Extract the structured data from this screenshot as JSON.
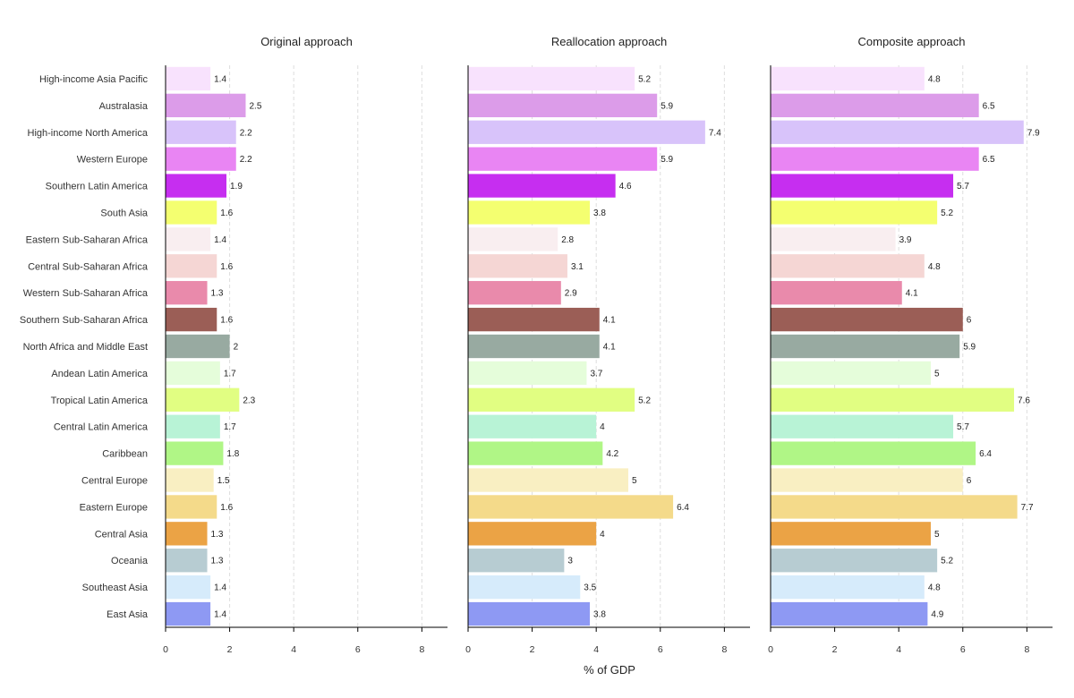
{
  "chart_data": {
    "type": "bar",
    "orientation": "horizontal",
    "xlabel": "% of GDP",
    "xlim": [
      0,
      8.8
    ],
    "xticks": [
      0,
      2,
      4,
      6,
      8
    ],
    "grid": true,
    "categories": [
      "High-income Asia Pacific",
      "Australasia",
      "High-income North America",
      "Western Europe",
      "Southern Latin America",
      "South Asia",
      "Eastern Sub-Saharan Africa",
      "Central Sub-Saharan Africa",
      "Western Sub-Saharan Africa",
      "Southern Sub-Saharan Africa",
      "North Africa and Middle East",
      "Andean Latin America",
      "Tropical Latin America",
      "Central Latin America",
      "Caribbean",
      "Central Europe",
      "Eastern Europe",
      "Central Asia",
      "Oceania",
      "Southeast Asia",
      "East Asia"
    ],
    "colors": [
      "#f8e2fd",
      "#dc9ce9",
      "#d8c3fa",
      "#e985f3",
      "#c62ef0",
      "#f4ff70",
      "#f9eef0",
      "#f5d6d4",
      "#e98aab",
      "#9b5e56",
      "#98aaa1",
      "#e5fdda",
      "#e1fe82",
      "#b8f3d6",
      "#b0f686",
      "#f9efc2",
      "#f4da8a",
      "#eba345",
      "#b7ccd2",
      "#d6ebfb",
      "#8e99f3"
    ],
    "series": [
      {
        "name": "Original approach",
        "values": [
          1.4,
          2.5,
          2.2,
          2.2,
          1.9,
          1.6,
          1.4,
          1.6,
          1.3,
          1.6,
          2,
          1.7,
          2.3,
          1.7,
          1.8,
          1.5,
          1.6,
          1.3,
          1.3,
          1.4,
          1.4
        ]
      },
      {
        "name": "Reallocation approach",
        "values": [
          5.2,
          5.9,
          7.4,
          5.9,
          4.6,
          3.8,
          2.8,
          3.1,
          2.9,
          4.1,
          4.1,
          3.7,
          5.2,
          4,
          4.2,
          5,
          6.4,
          4,
          3,
          3.5,
          3.8
        ]
      },
      {
        "name": "Composite approach",
        "values": [
          4.8,
          6.5,
          7.9,
          6.5,
          5.7,
          5.2,
          3.9,
          4.8,
          4.1,
          6,
          5.9,
          5,
          7.6,
          5.7,
          6.4,
          6,
          7.7,
          5,
          5.2,
          4.8,
          4.9
        ]
      }
    ]
  }
}
